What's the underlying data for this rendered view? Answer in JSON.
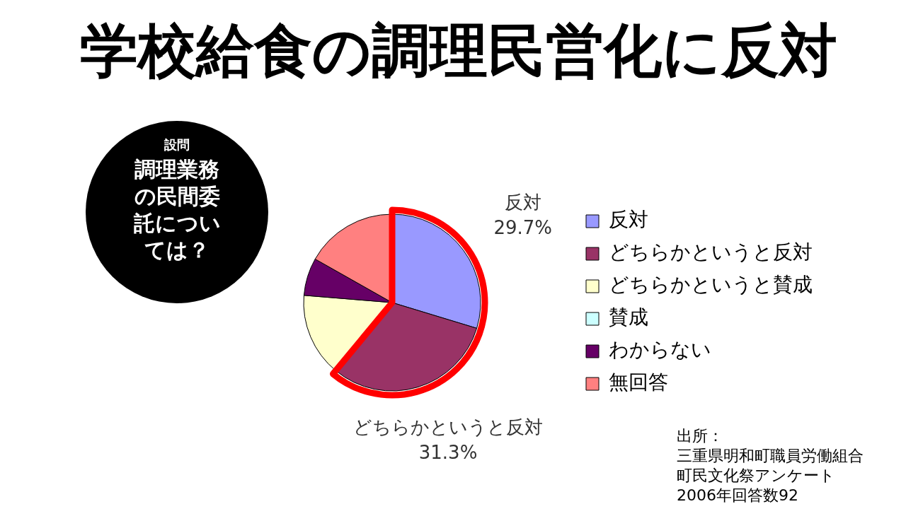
{
  "chart_data": {
    "type": "pie",
    "title": "学校給食の調理民営化に反対",
    "categories": [
      "反対",
      "どちらかというと反対",
      "どちらかというと賛成",
      "賛成",
      "わからない",
      "無回答"
    ],
    "values": [
      29.7,
      31.3,
      15.3,
      0,
      6.9,
      16.8
    ],
    "colors": [
      "#9999ff",
      "#993366",
      "#ffffcc",
      "#ccffff",
      "#660066",
      "#ff8080"
    ],
    "value_labels": [
      "29.7%",
      "31.3%",
      null,
      null,
      null,
      null
    ],
    "legend": "right",
    "annotations": [
      "設問",
      "調理業務の民間委託については？",
      "出所：",
      "三重県明和町職員労働組合",
      "町民文化祭アンケート",
      "2006年回答数92"
    ]
  }
}
